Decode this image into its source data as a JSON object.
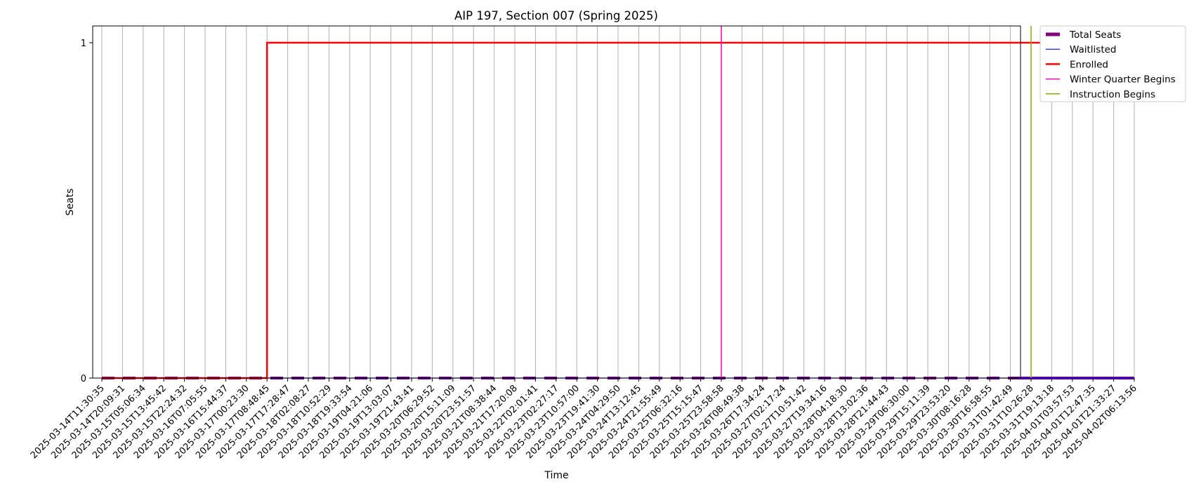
{
  "chart_data": {
    "type": "line",
    "title": "AIP 197, Section 007 (Spring 2025)",
    "xlabel": "Time",
    "ylabel": "Seats",
    "ylim": [
      0,
      1.05
    ],
    "yticks": [
      0,
      1
    ],
    "grid": "x",
    "legend_position": "outside-right-top",
    "x": [
      "2025-03-14T11:30:35",
      "2025-03-14T20:09:31",
      "2025-03-15T05:06:34",
      "2025-03-15T13:45:42",
      "2025-03-15T22:24:32",
      "2025-03-16T07:05:55",
      "2025-03-16T15:44:37",
      "2025-03-17T00:23:30",
      "2025-03-17T08:48:45",
      "2025-03-17T17:28:47",
      "2025-03-18T02:08:27",
      "2025-03-18T10:52:29",
      "2025-03-18T19:33:54",
      "2025-03-19T04:21:06",
      "2025-03-19T13:03:07",
      "2025-03-19T21:43:41",
      "2025-03-20T06:29:52",
      "2025-03-20T15:11:09",
      "2025-03-20T23:51:57",
      "2025-03-21T08:38:44",
      "2025-03-21T17:20:08",
      "2025-03-22T02:01:41",
      "2025-03-23T02:27:17",
      "2025-03-23T10:57:00",
      "2025-03-23T19:41:30",
      "2025-03-24T04:29:50",
      "2025-03-24T13:12:45",
      "2025-03-24T21:55:49",
      "2025-03-25T06:32:16",
      "2025-03-25T15:15:47",
      "2025-03-25T23:58:58",
      "2025-03-26T08:49:38",
      "2025-03-26T17:34:24",
      "2025-03-27T02:17:24",
      "2025-03-27T10:51:42",
      "2025-03-27T19:34:16",
      "2025-03-28T04:18:30",
      "2025-03-28T13:02:36",
      "2025-03-28T21:44:43",
      "2025-03-29T06:30:00",
      "2025-03-29T15:11:39",
      "2025-03-29T23:53:20",
      "2025-03-30T08:16:28",
      "2025-03-30T16:58:55",
      "2025-03-31T01:42:49",
      "2025-03-31T10:26:28",
      "2025-03-31T19:13:18",
      "2025-04-01T03:57:53",
      "2025-04-01T12:47:35",
      "2025-04-01T21:33:27",
      "2025-04-02T06:13:56"
    ],
    "series": [
      {
        "name": "Total Seats",
        "color": "#800080",
        "style": "thick-dashed",
        "values": [
          0,
          0,
          0,
          0,
          0,
          0,
          0,
          0,
          0,
          0,
          0,
          0,
          0,
          0,
          0,
          0,
          0,
          0,
          0,
          0,
          0,
          0,
          0,
          0,
          0,
          0,
          0,
          0,
          0,
          0,
          0,
          0,
          0,
          0,
          0,
          0,
          0,
          0,
          0,
          0,
          0,
          0,
          0,
          0,
          0,
          0,
          0,
          0,
          0,
          0,
          0
        ]
      },
      {
        "name": "Waitlisted",
        "color": "#0000ff",
        "style": "line",
        "values": [
          0,
          0,
          0,
          0,
          0,
          0,
          0,
          0,
          0,
          0,
          0,
          0,
          0,
          0,
          0,
          0,
          0,
          0,
          0,
          0,
          0,
          0,
          0,
          0,
          0,
          0,
          0,
          0,
          0,
          0,
          0,
          0,
          0,
          0,
          0,
          0,
          0,
          0,
          0,
          0,
          0,
          0,
          0,
          0,
          0,
          0,
          0,
          0,
          0,
          0,
          0
        ]
      },
      {
        "name": "Enrolled",
        "color": "#ff0000",
        "style": "step",
        "values": [
          0,
          0,
          0,
          0,
          0,
          0,
          0,
          0,
          1,
          1,
          1,
          1,
          1,
          1,
          1,
          1,
          1,
          1,
          1,
          1,
          1,
          1,
          1,
          1,
          1,
          1,
          1,
          1,
          1,
          1,
          1,
          1,
          1,
          1,
          1,
          1,
          1,
          1,
          1,
          1,
          1,
          1,
          1,
          1,
          1,
          1,
          1,
          1,
          1,
          1,
          1
        ]
      }
    ],
    "markers": [
      {
        "name": "Winter Quarter Begins",
        "color": "#ff00aa",
        "x": "2025-03-25T23:58:58"
      },
      {
        "name": "Instruction Begins",
        "color": "#88aa00",
        "x": "2025-03-31T10:26:28"
      }
    ]
  }
}
